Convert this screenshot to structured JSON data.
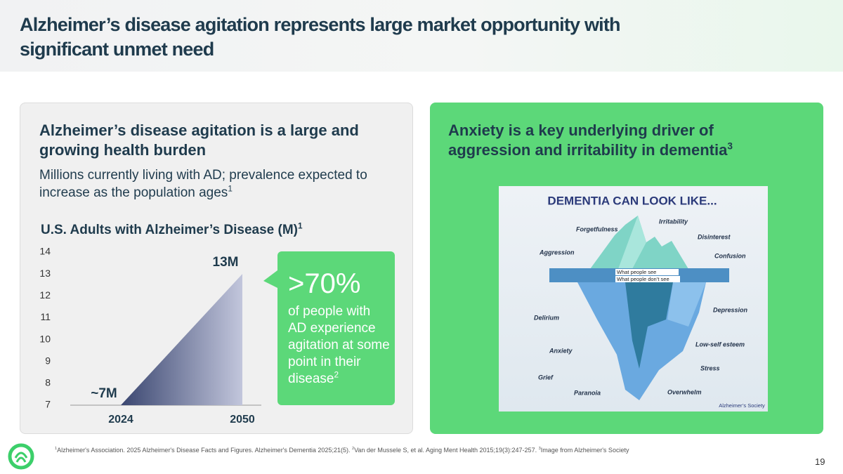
{
  "header": {
    "title": "Alzheimer’s disease agitation represents large market opportunity with significant unmet need"
  },
  "left": {
    "heading": "Alzheimer’s disease agitation is a large and growing health burden",
    "text": "Millions currently living with AD; prevalence expected to increase as the population ages",
    "text_sup": "1"
  },
  "chart_data": {
    "type": "area",
    "title": "U.S. Adults with Alzheimer’s Disease (M)",
    "title_sup": "1",
    "categories": [
      "2024",
      "2050"
    ],
    "values": [
      7,
      13
    ],
    "value_labels": [
      "~7M",
      "13M"
    ],
    "ylim": [
      7,
      14
    ],
    "yticks": [
      7,
      8,
      9,
      10,
      11,
      12,
      13,
      14
    ],
    "color_start": "#3a4670",
    "color_end": "#c2c6dc"
  },
  "callout": {
    "stat": ">70%",
    "text": "of people with AD experience agitation at some point in their disease",
    "sup": "2"
  },
  "right": {
    "heading": "Anxiety is a key underlying driver of aggression and irritability in dementia",
    "sup": "3"
  },
  "iceberg": {
    "title": "DEMENTIA CAN LOOK LIKE...",
    "see": "What people see",
    "dont_see": "What people don’t see",
    "labels": [
      "Irritability",
      "Forgetfulness",
      "Disinterest",
      "Aggression",
      "Confusion",
      "Depression",
      "Delirium",
      "Low-self esteem",
      "Anxiety",
      "Stress",
      "Grief",
      "Paranoia",
      "Overwhelm"
    ],
    "credit": "Alzheimer’s Society"
  },
  "footnotes": [
    {
      "mark": "1",
      "text": "Alzheimer's Association. 2025 Alzheimer's Disease Facts and Figures. Alzheimer's Dementia 2025;21(5). "
    },
    {
      "mark": "2",
      "text": "Van der Mussele S, et al. Aging Ment Health 2015;19(3):247-257. "
    },
    {
      "mark": "3",
      "text": "Image from Alzheimer's Society"
    }
  ],
  "page_number": "19"
}
